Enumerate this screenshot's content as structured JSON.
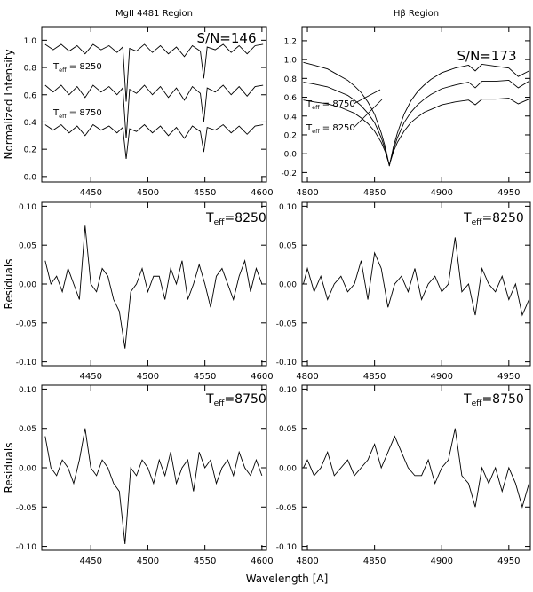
{
  "figure": {
    "xlabel": "Wavelength  [A]"
  },
  "chart_data": [
    {
      "type": "line",
      "title": "MgII 4481 Region",
      "ylabel": "Normalized Intensity",
      "xlim": [
        4407,
        4604
      ],
      "ylim": [
        -0.04,
        1.1
      ],
      "xticks": [
        4450,
        4500,
        4550,
        4600
      ],
      "yticks": [
        {
          "value": 0,
          "label": "0.0"
        },
        0.2,
        0.4,
        0.6,
        0.8,
        {
          "value": 1,
          "label": "1.0"
        }
      ],
      "annotations": [
        {
          "text": "S/N=146"
        },
        {
          "symbol": "T",
          "sub": "eff",
          "text": " = 8250"
        },
        {
          "symbol": "T",
          "sub": "eff",
          "text": " = 8750"
        }
      ],
      "x": [
        4410,
        4417,
        4424,
        4431,
        4438,
        4445,
        4452,
        4459,
        4466,
        4473,
        4478,
        4481,
        4484,
        4490,
        4497,
        4504,
        4511,
        4518,
        4525,
        4532,
        4539,
        4546,
        4549,
        4552,
        4559,
        4566,
        4573,
        4580,
        4587,
        4594,
        4601
      ],
      "series": [
        {
          "color": "#000000",
          "values": [
            0.97,
            0.93,
            0.97,
            0.92,
            0.96,
            0.9,
            0.97,
            0.93,
            0.96,
            0.91,
            0.95,
            0.55,
            0.94,
            0.92,
            0.97,
            0.91,
            0.96,
            0.9,
            0.95,
            0.88,
            0.96,
            0.92,
            0.72,
            0.95,
            0.93,
            0.97,
            0.91,
            0.96,
            0.9,
            0.96,
            0.97
          ]
        },
        {
          "color": "#000000",
          "values": [
            0.67,
            0.62,
            0.67,
            0.6,
            0.66,
            0.58,
            0.67,
            0.62,
            0.66,
            0.6,
            0.65,
            0.28,
            0.64,
            0.61,
            0.67,
            0.6,
            0.66,
            0.58,
            0.65,
            0.56,
            0.66,
            0.61,
            0.4,
            0.65,
            0.62,
            0.67,
            0.6,
            0.66,
            0.59,
            0.66,
            0.67
          ]
        },
        {
          "color": "#000000",
          "values": [
            0.38,
            0.34,
            0.38,
            0.32,
            0.37,
            0.3,
            0.38,
            0.34,
            0.37,
            0.32,
            0.36,
            0.13,
            0.35,
            0.33,
            0.38,
            0.32,
            0.37,
            0.3,
            0.36,
            0.28,
            0.37,
            0.33,
            0.18,
            0.36,
            0.34,
            0.38,
            0.32,
            0.37,
            0.31,
            0.37,
            0.38
          ]
        }
      ]
    },
    {
      "type": "line",
      "title": "Hβ Region",
      "xlim": [
        4796,
        4966
      ],
      "ylim": [
        -0.3,
        1.35
      ],
      "xticks": [
        4800,
        4850,
        4900,
        4950
      ],
      "yticks": [
        -0.2,
        {
          "value": 0,
          "label": "0.0"
        },
        0.2,
        0.4,
        0.6,
        0.8,
        {
          "value": 1,
          "label": "1.0"
        },
        1.2
      ],
      "annotations": [
        {
          "text": "S/N=173"
        },
        {
          "symbol": "T",
          "sub": "eff",
          "text": " = 8750"
        },
        {
          "symbol": "T",
          "sub": "eff",
          "text": " = 8250"
        }
      ],
      "x": [
        4797,
        4805,
        4815,
        4825,
        4830,
        4835,
        4840,
        4845,
        4850,
        4855,
        4858,
        4861,
        4864,
        4867,
        4872,
        4877,
        4882,
        4887,
        4892,
        4900,
        4910,
        4920,
        4925,
        4930,
        4940,
        4950,
        4957,
        4965
      ],
      "series": [
        {
          "color": "#000000",
          "values": [
            0.97,
            0.94,
            0.9,
            0.82,
            0.78,
            0.72,
            0.65,
            0.55,
            0.42,
            0.22,
            0.07,
            -0.13,
            0.07,
            0.22,
            0.42,
            0.56,
            0.66,
            0.73,
            0.79,
            0.86,
            0.91,
            0.94,
            0.88,
            0.95,
            0.93,
            0.91,
            0.82,
            0.88
          ]
        },
        {
          "color": "#000000",
          "values": [
            0.76,
            0.74,
            0.71,
            0.65,
            0.62,
            0.57,
            0.51,
            0.43,
            0.33,
            0.17,
            0.04,
            -0.12,
            0.04,
            0.17,
            0.33,
            0.44,
            0.52,
            0.58,
            0.63,
            0.69,
            0.73,
            0.76,
            0.7,
            0.77,
            0.77,
            0.78,
            0.7,
            0.77
          ]
        },
        {
          "color": "#000000",
          "values": [
            0.57,
            0.55,
            0.53,
            0.49,
            0.46,
            0.43,
            0.38,
            0.32,
            0.24,
            0.12,
            0.02,
            -0.12,
            0.02,
            0.12,
            0.24,
            0.33,
            0.39,
            0.44,
            0.47,
            0.52,
            0.55,
            0.57,
            0.52,
            0.58,
            0.58,
            0.59,
            0.53,
            0.58
          ]
        }
      ]
    },
    {
      "type": "line",
      "ylabel": "Residuals",
      "xlim": [
        4407,
        4604
      ],
      "ylim": [
        -0.105,
        0.105
      ],
      "xticks": [
        4450,
        4500,
        4550,
        4600
      ],
      "yticks": [
        {
          "value": -0.1,
          "label": "-0.10"
        },
        -0.05,
        {
          "value": 0,
          "label": "0.00"
        },
        0.05,
        {
          "value": 0.1,
          "label": "0.10"
        }
      ],
      "annotations": [
        {
          "symbol": "T",
          "sub": "eff",
          "text": "=8250"
        }
      ],
      "x": [
        4410,
        4415,
        4420,
        4425,
        4430,
        4435,
        4440,
        4445,
        4450,
        4455,
        4460,
        4465,
        4470,
        4475,
        4480,
        4485,
        4490,
        4495,
        4500,
        4505,
        4510,
        4515,
        4520,
        4525,
        4530,
        4535,
        4540,
        4545,
        4550,
        4555,
        4560,
        4565,
        4570,
        4575,
        4580,
        4585,
        4590,
        4595,
        4600
      ],
      "series": [
        {
          "color": "#000000",
          "values": [
            0.03,
            0.0,
            0.01,
            -0.01,
            0.02,
            0.0,
            -0.02,
            0.075,
            0.0,
            -0.01,
            0.02,
            0.01,
            -0.02,
            -0.035,
            -0.083,
            -0.01,
            0.0,
            0.02,
            -0.01,
            0.01,
            0.01,
            -0.02,
            0.02,
            0.0,
            0.03,
            -0.02,
            0.0,
            0.025,
            0.0,
            -0.03,
            0.01,
            0.02,
            0.0,
            -0.02,
            0.01,
            0.03,
            -0.01,
            0.02,
            0.0
          ]
        }
      ]
    },
    {
      "type": "line",
      "xlim": [
        4796,
        4966
      ],
      "ylim": [
        -0.105,
        0.105
      ],
      "xticks": [
        4800,
        4850,
        4900,
        4950
      ],
      "yticks": [
        {
          "value": -0.1,
          "label": "-0.10"
        },
        -0.05,
        {
          "value": 0,
          "label": "0.00"
        },
        0.05,
        {
          "value": 0.1,
          "label": "0.10"
        }
      ],
      "annotations": [
        {
          "symbol": "T",
          "sub": "eff",
          "text": "=8250"
        }
      ],
      "x": [
        4797,
        4800,
        4805,
        4810,
        4815,
        4820,
        4825,
        4830,
        4835,
        4840,
        4845,
        4850,
        4855,
        4860,
        4865,
        4870,
        4875,
        4880,
        4885,
        4890,
        4895,
        4900,
        4905,
        4910,
        4915,
        4920,
        4925,
        4930,
        4935,
        4940,
        4945,
        4950,
        4955,
        4960,
        4965
      ],
      "series": [
        {
          "color": "#000000",
          "values": [
            0.0,
            0.02,
            -0.01,
            0.01,
            -0.02,
            0.0,
            0.01,
            -0.01,
            0.0,
            0.03,
            -0.02,
            0.04,
            0.02,
            -0.03,
            0.0,
            0.01,
            -0.01,
            0.02,
            -0.02,
            0.0,
            0.01,
            -0.01,
            0.0,
            0.06,
            -0.01,
            0.0,
            -0.04,
            0.02,
            0.0,
            -0.01,
            0.01,
            -0.02,
            0.0,
            -0.04,
            -0.02
          ]
        }
      ]
    },
    {
      "type": "line",
      "ylabel": "Residuals",
      "xlim": [
        4407,
        4604
      ],
      "ylim": [
        -0.105,
        0.105
      ],
      "xticks": [
        4450,
        4500,
        4550,
        4600
      ],
      "yticks": [
        {
          "value": -0.1,
          "label": "-0.10"
        },
        -0.05,
        {
          "value": 0,
          "label": "0.00"
        },
        0.05,
        {
          "value": 0.1,
          "label": "0.10"
        }
      ],
      "annotations": [
        {
          "symbol": "T",
          "sub": "eff",
          "text": "=8750"
        }
      ],
      "x": [
        4410,
        4415,
        4420,
        4425,
        4430,
        4435,
        4440,
        4445,
        4450,
        4455,
        4460,
        4465,
        4470,
        4475,
        4480,
        4485,
        4490,
        4495,
        4500,
        4505,
        4510,
        4515,
        4520,
        4525,
        4530,
        4535,
        4540,
        4545,
        4550,
        4555,
        4560,
        4565,
        4570,
        4575,
        4580,
        4585,
        4590,
        4595,
        4600
      ],
      "series": [
        {
          "color": "#000000",
          "values": [
            0.04,
            0.0,
            -0.01,
            0.01,
            0.0,
            -0.02,
            0.01,
            0.05,
            0.0,
            -0.01,
            0.01,
            0.0,
            -0.02,
            -0.03,
            -0.097,
            0.0,
            -0.01,
            0.01,
            0.0,
            -0.02,
            0.01,
            -0.01,
            0.02,
            -0.02,
            0.0,
            0.01,
            -0.03,
            0.02,
            0.0,
            0.01,
            -0.02,
            0.0,
            0.01,
            -0.01,
            0.02,
            0.0,
            -0.01,
            0.01,
            -0.01
          ]
        }
      ]
    },
    {
      "type": "line",
      "xlim": [
        4796,
        4966
      ],
      "ylim": [
        -0.105,
        0.105
      ],
      "xticks": [
        4800,
        4850,
        4900,
        4950
      ],
      "yticks": [
        {
          "value": -0.1,
          "label": "-0.10"
        },
        -0.05,
        {
          "value": 0,
          "label": "0.00"
        },
        0.05,
        {
          "value": 0.1,
          "label": "0.10"
        }
      ],
      "annotations": [
        {
          "symbol": "T",
          "sub": "eff",
          "text": "=8750"
        }
      ],
      "x": [
        4797,
        4800,
        4805,
        4810,
        4815,
        4820,
        4825,
        4830,
        4835,
        4840,
        4845,
        4850,
        4855,
        4860,
        4865,
        4870,
        4875,
        4880,
        4885,
        4890,
        4895,
        4900,
        4905,
        4910,
        4915,
        4920,
        4925,
        4930,
        4935,
        4940,
        4945,
        4950,
        4955,
        4960,
        4965
      ],
      "series": [
        {
          "color": "#000000",
          "values": [
            0.0,
            0.01,
            -0.01,
            0.0,
            0.02,
            -0.01,
            0.0,
            0.01,
            -0.01,
            0.0,
            0.01,
            0.03,
            0.0,
            0.02,
            0.04,
            0.02,
            0.0,
            -0.01,
            -0.01,
            0.01,
            -0.02,
            0.0,
            0.01,
            0.05,
            -0.01,
            -0.02,
            -0.05,
            0.0,
            -0.02,
            0.0,
            -0.03,
            0.0,
            -0.02,
            -0.05,
            -0.02
          ]
        }
      ]
    }
  ]
}
